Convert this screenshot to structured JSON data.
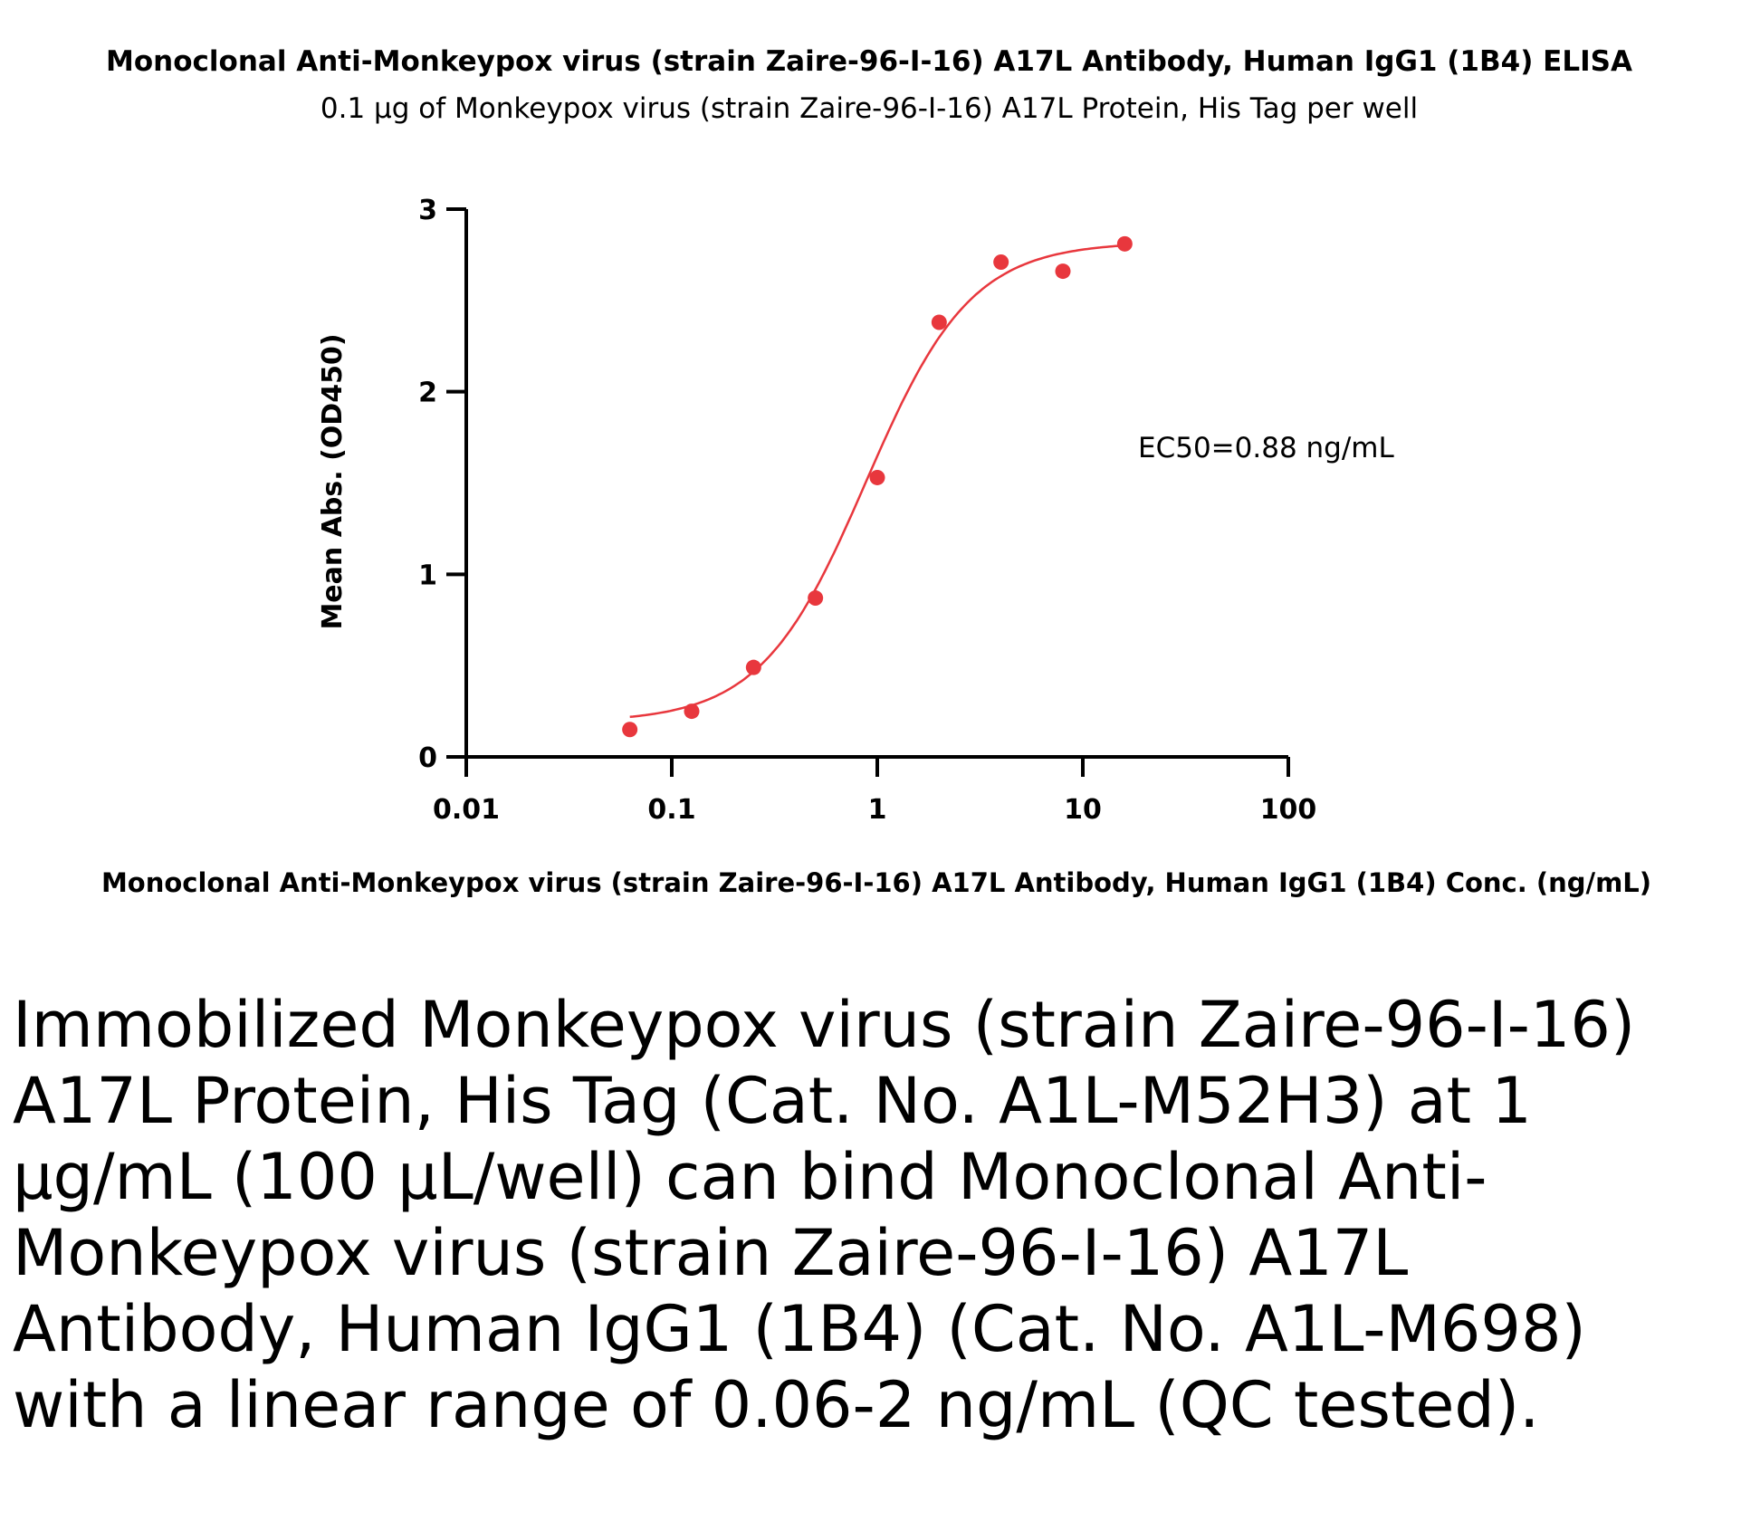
{
  "chart_data": {
    "type": "scatter",
    "title": "Monoclonal Anti-Monkeypox virus (strain Zaire-96-I-16) A17L Antibody, Human IgG1 (1B4) ELISA",
    "subtitle": "0.1 µg of Monkeypox virus (strain Zaire-96-I-16) A17L Protein, His Tag per well",
    "xlabel": "Monoclonal Anti-Monkeypox virus (strain Zaire-96-I-16) A17L Antibody, Human IgG1 (1B4) Conc. (ng/mL)",
    "ylabel": "Mean Abs. (OD450)",
    "x_scale": "log",
    "xlim": [
      0.01,
      100
    ],
    "ylim": [
      0,
      3
    ],
    "x_ticks": [
      0.01,
      0.1,
      1,
      10,
      100
    ],
    "x_tick_labels": [
      "0.01",
      "0.1",
      "1",
      "10",
      "100"
    ],
    "y_ticks": [
      0,
      1,
      2,
      3
    ],
    "y_tick_labels": [
      "0",
      "1",
      "2",
      "3"
    ],
    "grid": false,
    "annotation": "EC50=0.88 ng/mL",
    "series": [
      {
        "color": "#e8373d",
        "x": [
          0.0625,
          0.125,
          0.25,
          0.5,
          1,
          2,
          4,
          8,
          16
        ],
        "y": [
          0.15,
          0.25,
          0.49,
          0.87,
          1.53,
          2.38,
          2.71,
          2.66,
          2.81
        ],
        "fit": {
          "model": "4PL",
          "bottom": 0.19,
          "top": 2.82,
          "ec50": 0.88,
          "hill": 1.7,
          "x_range": [
            0.0625,
            16
          ]
        }
      }
    ]
  },
  "caption": "Immobilized Monkeypox virus (strain Zaire-96-I-16) A17L Protein, His Tag (Cat. No. A1L-M52H3) at 1 µg/mL (100 µL/well) can bind Monoclonal Anti-Monkeypox virus (strain Zaire-96-I-16) A17L Antibody, Human IgG1 (1B4) (Cat. No. A1L-M698) with a linear range of 0.06-2 ng/mL (QC tested)."
}
